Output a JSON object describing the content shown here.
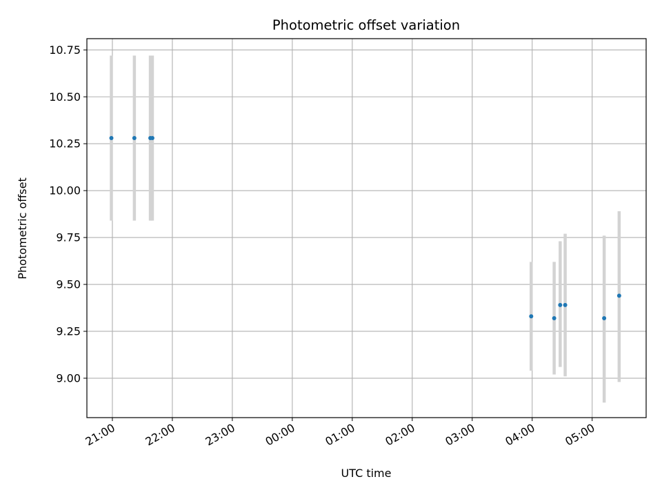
{
  "chart_data": {
    "type": "scatter",
    "title": "Photometric offset variation",
    "xlabel": "UTC time",
    "ylabel": "Photometric offset",
    "x_ticks": [
      {
        "t": 0,
        "label": "21:00"
      },
      {
        "t": 1,
        "label": "22:00"
      },
      {
        "t": 2,
        "label": "23:00"
      },
      {
        "t": 3,
        "label": "00:00"
      },
      {
        "t": 4,
        "label": "01:00"
      },
      {
        "t": 5,
        "label": "02:00"
      },
      {
        "t": 6,
        "label": "03:00"
      },
      {
        "t": 7,
        "label": "04:00"
      },
      {
        "t": 8,
        "label": "05:00"
      }
    ],
    "y_ticks": [
      9.0,
      9.25,
      9.5,
      9.75,
      10.0,
      10.25,
      10.5,
      10.75
    ],
    "xlim": [
      -0.425,
      8.9
    ],
    "ylim": [
      8.79,
      10.81
    ],
    "grid": true,
    "series": [
      {
        "color": "#1f77b4",
        "errorbar_color": "#d3d3d3",
        "points": [
          {
            "time": "20:59",
            "y": 10.28,
            "yerr_low": 9.84,
            "yerr_high": 10.72
          },
          {
            "time": "21:22",
            "y": 10.28,
            "yerr_low": 9.84,
            "yerr_high": 10.72
          },
          {
            "time": "21:38",
            "y": 10.28,
            "yerr_low": 9.84,
            "yerr_high": 10.72
          },
          {
            "time": "21:40",
            "y": 10.28,
            "yerr_low": 9.84,
            "yerr_high": 10.72
          },
          {
            "time": "03:59",
            "y": 9.33,
            "yerr_low": 9.04,
            "yerr_high": 9.62
          },
          {
            "time": "04:22",
            "y": 9.32,
            "yerr_low": 9.02,
            "yerr_high": 9.62
          },
          {
            "time": "04:28",
            "y": 9.39,
            "yerr_low": 9.06,
            "yerr_high": 9.73
          },
          {
            "time": "04:33",
            "y": 9.39,
            "yerr_low": 9.01,
            "yerr_high": 9.77
          },
          {
            "time": "05:12",
            "y": 9.32,
            "yerr_low": 8.87,
            "yerr_high": 9.76
          },
          {
            "time": "05:27",
            "y": 9.44,
            "yerr_low": 8.98,
            "yerr_high": 9.89
          }
        ]
      }
    ]
  }
}
